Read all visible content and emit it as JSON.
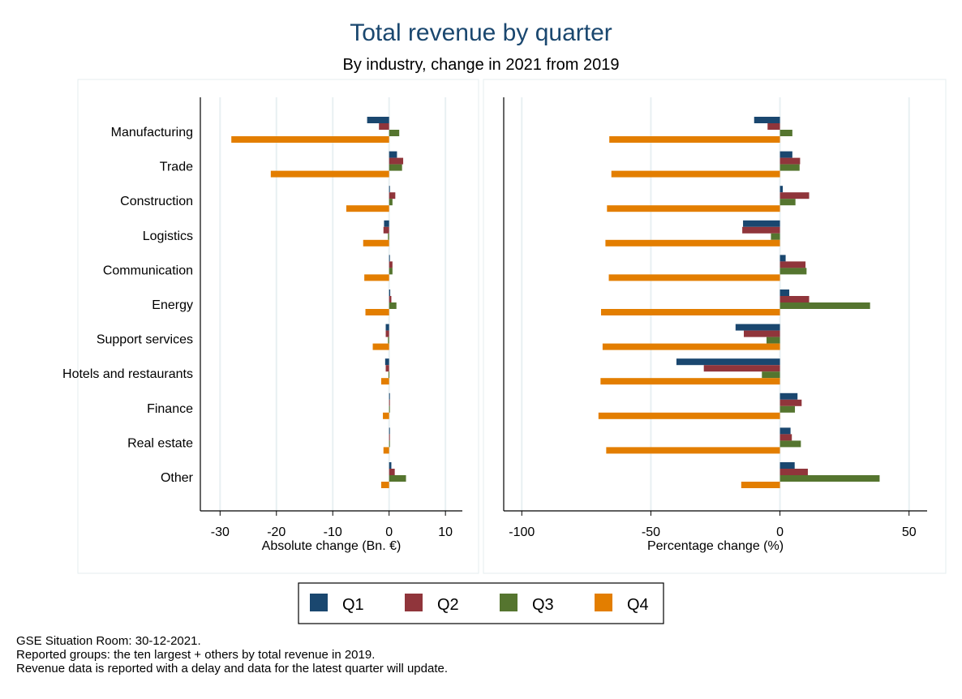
{
  "chart_data": {
    "title": "Total revenue by quarter",
    "subtitle": "By industry, change in 2021 from 2019",
    "categories": [
      "Manufacturing",
      "Trade",
      "Construction",
      "Logistics",
      "Communication",
      "Energy",
      "Support services",
      "Hotels and restaurants",
      "Finance",
      "Real estate",
      "Other"
    ],
    "legend": {
      "placement": "bottom",
      "entries": [
        "Q1",
        "Q2",
        "Q3",
        "Q4"
      ]
    },
    "colors": {
      "Q1": "#1a476f",
      "Q2": "#90353b",
      "Q3": "#55752f",
      "Q4": "#e37e00",
      "title": "#1a476f"
    },
    "panels": [
      {
        "type": "bar",
        "orientation": "horizontal",
        "xlabel": "Absolute change (Bn. €)",
        "xlim": [
          -33.5,
          13
        ],
        "xticks": [
          -30,
          -20,
          -10,
          0,
          10
        ],
        "tick_labels": [
          "-30",
          "-20",
          "-10",
          "0",
          "10"
        ],
        "grid": true,
        "series": [
          {
            "name": "Q1",
            "values": [
              -3.9,
              1.4,
              0.1,
              -0.9,
              0.1,
              0.2,
              -0.6,
              -0.7,
              0.1,
              0.0,
              0.4
            ]
          },
          {
            "name": "Q2",
            "values": [
              -1.8,
              2.5,
              1.1,
              -1.0,
              0.6,
              0.4,
              -0.6,
              -0.6,
              0.1,
              0.0,
              1.0
            ]
          },
          {
            "name": "Q3",
            "values": [
              1.8,
              2.3,
              0.6,
              -0.2,
              0.6,
              1.3,
              -0.2,
              -0.1,
              0.1,
              0.1,
              3.0
            ]
          },
          {
            "name": "Q4",
            "values": [
              -28.0,
              -21.0,
              -7.6,
              -4.6,
              -4.4,
              -4.2,
              -2.9,
              -1.4,
              -1.1,
              -1.0,
              -1.4
            ]
          }
        ]
      },
      {
        "type": "bar",
        "orientation": "horizontal",
        "xlabel": "Percentage change (%)",
        "xlim": [
          -107,
          57
        ],
        "xticks": [
          -100,
          -50,
          0,
          50
        ],
        "tick_labels": [
          "-100",
          "-50",
          "0",
          "50"
        ],
        "grid": true,
        "series": [
          {
            "name": "Q1",
            "values": [
              -10.0,
              4.8,
              1.1,
              -14.3,
              2.2,
              3.6,
              -17.2,
              -40.1,
              6.8,
              4.1,
              5.7
            ]
          },
          {
            "name": "Q2",
            "values": [
              -4.8,
              7.8,
              11.3,
              -14.6,
              9.9,
              11.3,
              -14.0,
              -29.5,
              8.4,
              4.6,
              10.8
            ]
          },
          {
            "name": "Q3",
            "values": [
              4.8,
              7.6,
              6.0,
              -3.5,
              10.3,
              34.9,
              -5.2,
              -7.0,
              5.8,
              8.1,
              38.6
            ]
          },
          {
            "name": "Q4",
            "values": [
              -66.1,
              -65.3,
              -67.0,
              -67.6,
              -66.3,
              -69.3,
              -68.7,
              -69.5,
              -70.3,
              -67.3,
              -15.0
            ]
          }
        ]
      }
    ],
    "notes": [
      "GSE Situation Room: 30-12-2021.",
      "Reported groups: the ten largest + others by total revenue in 2019.",
      "Revenue data is reported with a delay and data for the latest quarter will update."
    ]
  }
}
